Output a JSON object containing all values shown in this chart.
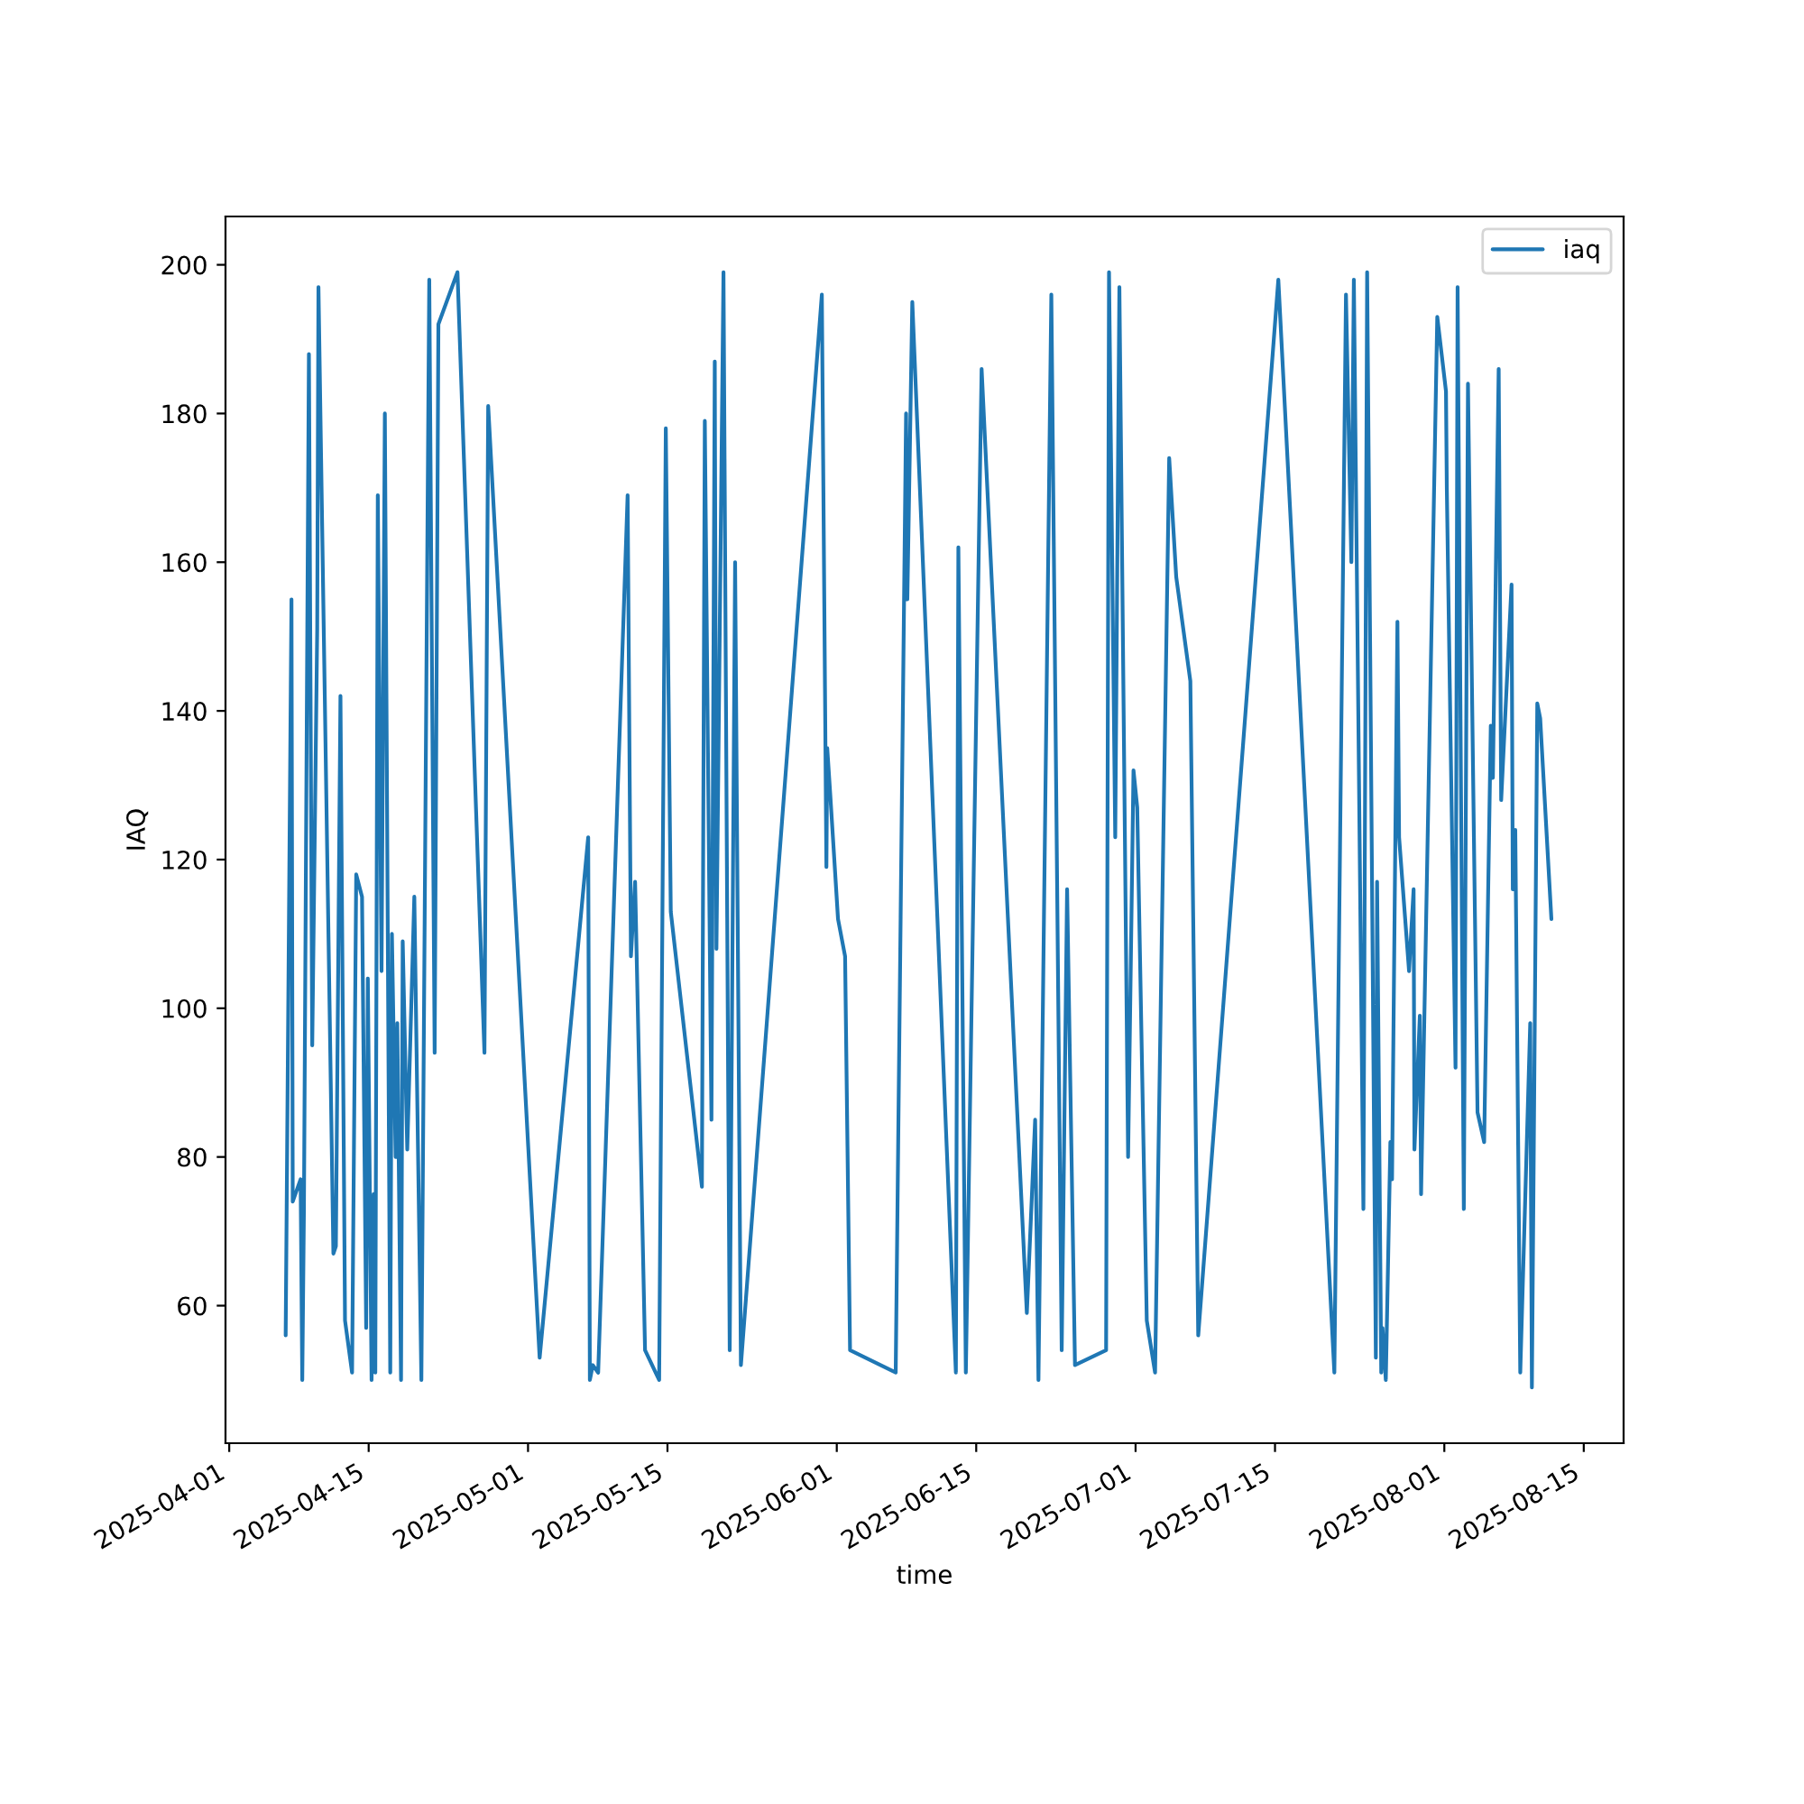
{
  "chart_data": {
    "type": "line",
    "xlabel": "time",
    "ylabel": "IAQ",
    "legend": "top right",
    "grid": false,
    "xlim": [
      "2025-03-31T15:00",
      "2025-08-19T00:00"
    ],
    "ylim": [
      41.5,
      206.5
    ],
    "xticks": [
      "2025-04-01",
      "2025-04-15",
      "2025-05-01",
      "2025-05-15",
      "2025-06-01",
      "2025-06-15",
      "2025-07-01",
      "2025-07-15",
      "2025-08-01",
      "2025-08-15"
    ],
    "yticks": [
      60,
      80,
      100,
      120,
      140,
      160,
      180,
      200
    ],
    "series": [
      {
        "name": "iaq",
        "color": "#1f77b4",
        "x": [
          "2025-04-06T16:00",
          "2025-04-07T06:00",
          "2025-04-07T09:00",
          "2025-04-08T04:00",
          "2025-04-08T08:00",
          "2025-04-08T12:00",
          "2025-04-09T00:00",
          "2025-04-09T08:00",
          "2025-04-09T20:00",
          "2025-04-09T23:00",
          "2025-04-11T11:00",
          "2025-04-11T17:00",
          "2025-04-12T04:00",
          "2025-04-12T15:00",
          "2025-04-13T08:00",
          "2025-04-13T18:00",
          "2025-04-14T08:00",
          "2025-04-14T18:00",
          "2025-04-14T22:00",
          "2025-04-15T07:00",
          "2025-04-15T12:00",
          "2025-04-15T16:00",
          "2025-04-15T22:00",
          "2025-04-16T07:00",
          "2025-04-16T15:00",
          "2025-04-17T04:00",
          "2025-04-17T08:00",
          "2025-04-17T17:00",
          "2025-04-17T21:00",
          "2025-04-18T06:00",
          "2025-04-18T10:00",
          "2025-04-18T21:00",
          "2025-04-19T14:00",
          "2025-04-20T07:00",
          "2025-04-21T02:00",
          "2025-04-21T15:00",
          "2025-04-22T00:00",
          "2025-04-23T22:00",
          "2025-04-26T15:00",
          "2025-04-27T00:00",
          "2025-05-02T04:00",
          "2025-05-07T01:00",
          "2025-05-07T05:00",
          "2025-05-07T12:00",
          "2025-05-08T01:00",
          "2025-05-11T00:00",
          "2025-05-11T08:00",
          "2025-05-11T18:00",
          "2025-05-12T18:00",
          "2025-05-14T04:00",
          "2025-05-14T20:00",
          "2025-05-15T08:00",
          "2025-05-18T11:00",
          "2025-05-18T18:00",
          "2025-05-19T10:00",
          "2025-05-19T18:00",
          "2025-05-19T22:00",
          "2025-05-20T15:00",
          "2025-05-21T06:00",
          "2025-05-21T19:00",
          "2025-05-22T09:00",
          "2025-05-30T12:00",
          "2025-05-30T23:00",
          "2025-05-31T01:00",
          "2025-05-31T08:00",
          "2025-06-01T03:00",
          "2025-06-01T20:00",
          "2025-06-02T08:00",
          "2025-06-06T22:00",
          "2025-06-07T23:00",
          "2025-06-08T02:00",
          "2025-06-08T14:00",
          "2025-06-12T23:00",
          "2025-06-13T05:00",
          "2025-06-13T23:00",
          "2025-06-15T13:00",
          "2025-06-20T02:00",
          "2025-06-20T22:00",
          "2025-06-21T06:00",
          "2025-06-22T13:00",
          "2025-06-23T14:00",
          "2025-06-24T03:00",
          "2025-06-24T22:00",
          "2025-06-28T01:00",
          "2025-06-28T08:00",
          "2025-06-28T23:00",
          "2025-06-29T09:00",
          "2025-06-30T06:00",
          "2025-06-30T19:00",
          "2025-07-01T04:00",
          "2025-07-02T03:00",
          "2025-07-02T23:00",
          "2025-07-04T09:00",
          "2025-07-05T02:00",
          "2025-07-06T12:00",
          "2025-07-07T07:00",
          "2025-07-15T08:00",
          "2025-07-20T23:00",
          "2025-07-22T03:00",
          "2025-07-22T16:00",
          "2025-07-22T22:00",
          "2025-07-23T21:00",
          "2025-07-24T06:00",
          "2025-07-25T03:00",
          "2025-07-25T06:00",
          "2025-07-25T16:00",
          "2025-07-25T19:00",
          "2025-07-26T03:00",
          "2025-07-26T14:00",
          "2025-07-26T18:00",
          "2025-07-27T07:00",
          "2025-07-27T11:00",
          "2025-07-28T11:00",
          "2025-07-28T22:00",
          "2025-07-29T00:00",
          "2025-07-29T13:00",
          "2025-07-29T16:00",
          "2025-07-31T07:00",
          "2025-08-01T04:00",
          "2025-08-01T06:00",
          "2025-08-02T03:00",
          "2025-08-02T08:00",
          "2025-08-02T23:00",
          "2025-08-03T09:00",
          "2025-08-04T08:00",
          "2025-08-05T00:00",
          "2025-08-05T16:00",
          "2025-08-05T21:00",
          "2025-08-06T11:00",
          "2025-08-06T17:00",
          "2025-08-07T18:00",
          "2025-08-07T21:00",
          "2025-08-08T03:00",
          "2025-08-08T15:00",
          "2025-08-09T15:00",
          "2025-08-09T19:00",
          "2025-08-10T08:00",
          "2025-08-10T15:00",
          "2025-08-11T18:00"
        ],
        "values": [
          56,
          155,
          74,
          77,
          50,
          73,
          188,
          95,
          151,
          197,
          67,
          68,
          142,
          58,
          51,
          118,
          115,
          57,
          104,
          50,
          75,
          51,
          169,
          105,
          180,
          51,
          110,
          80,
          98,
          50,
          109,
          81,
          115,
          50,
          198,
          94,
          192,
          199,
          94,
          181,
          53,
          123,
          50,
          52,
          51,
          169,
          107,
          117,
          54,
          50,
          178,
          113,
          76,
          179,
          85,
          187,
          108,
          199,
          54,
          160,
          52,
          196,
          119,
          135,
          129,
          112,
          107,
          54,
          51,
          180,
          155,
          195,
          51,
          162,
          51,
          186,
          59,
          85,
          50,
          196,
          54,
          116,
          52,
          54,
          199,
          123,
          197,
          80,
          132,
          127,
          58,
          51,
          174,
          158,
          144,
          56,
          198,
          51,
          196,
          160,
          198,
          73,
          199,
          53,
          117,
          51,
          57,
          50,
          82,
          77,
          152,
          123,
          105,
          116,
          81,
          99,
          75,
          193,
          183,
          170,
          92,
          197,
          73,
          184,
          86,
          82,
          138,
          131,
          186,
          128,
          157,
          116,
          124,
          51,
          98,
          49,
          141,
          139,
          112
        ]
      }
    ]
  }
}
